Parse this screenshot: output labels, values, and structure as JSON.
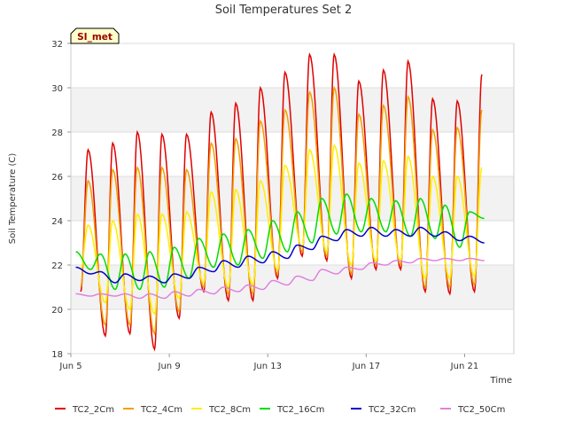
{
  "chart_data": {
    "type": "line",
    "title": "Soil Temperatures Set 2",
    "xlabel": "Time",
    "ylabel": "Soil Temperature (C)",
    "badge": "SI_met",
    "ylim": [
      18,
      32
    ],
    "xlim": [
      0,
      18
    ],
    "x_ticks": [
      {
        "value": 0,
        "label": "Jun 5"
      },
      {
        "value": 4,
        "label": "Jun 9"
      },
      {
        "value": 8,
        "label": "Jun 13"
      },
      {
        "value": 12,
        "label": "Jun 17"
      },
      {
        "value": 16,
        "label": "Jun 21"
      }
    ],
    "y_ticks": [
      18,
      20,
      22,
      24,
      26,
      28,
      30,
      32
    ],
    "grid": "horizontal bands",
    "legend_position": "bottom",
    "x_days": [
      0.2,
      0.5,
      0.8,
      1.2,
      1.5,
      1.8,
      2.2,
      2.5,
      2.8,
      3.2,
      3.5,
      3.8,
      4.2,
      4.5,
      4.8,
      5.2,
      5.5,
      5.8,
      6.2,
      6.5,
      6.8,
      7.2,
      7.5,
      7.8,
      8.2,
      8.5,
      8.8,
      9.2,
      9.5,
      9.8,
      10.2,
      10.5,
      10.8,
      11.2,
      11.5,
      11.8,
      12.2,
      12.5,
      12.8,
      13.2,
      13.5,
      13.8,
      14.2,
      14.5,
      14.8,
      15.2,
      15.5,
      15.8,
      16.2,
      16.5,
      16.8,
      17.2
    ],
    "series": [
      {
        "name": "TC2_2Cm",
        "color": "#e00000",
        "peak_x": [
          0.7,
          1.7,
          2.7,
          3.7,
          4.7,
          5.7,
          6.7,
          7.7,
          8.7,
          9.7,
          10.7,
          11.7,
          12.7,
          13.7,
          14.7,
          15.7,
          16.7
        ],
        "peaks": [
          27.2,
          27.5,
          28.0,
          27.9,
          27.9,
          28.9,
          29.3,
          30.0,
          30.7,
          31.5,
          31.5,
          30.3,
          30.8,
          31.2,
          29.5,
          29.4,
          30.6
        ],
        "trough_x": [
          0.4,
          1.4,
          2.4,
          3.4,
          4.4,
          5.4,
          6.4,
          7.4,
          8.4,
          9.4,
          10.4,
          11.4,
          12.4,
          13.4,
          14.4,
          15.4,
          16.4
        ],
        "troughs": [
          20.8,
          18.8,
          18.9,
          18.2,
          19.6,
          20.8,
          20.4,
          20.4,
          21.4,
          22.4,
          22.2,
          21.4,
          21.8,
          21.8,
          20.8,
          20.7,
          20.8
        ]
      },
      {
        "name": "TC2_4Cm",
        "color": "#f0a000",
        "peak_x": [
          0.7,
          1.7,
          2.7,
          3.7,
          4.7,
          5.7,
          6.7,
          7.7,
          8.7,
          9.7,
          10.7,
          11.7,
          12.7,
          13.7,
          14.7,
          15.7,
          16.7
        ],
        "peaks": [
          25.8,
          26.3,
          26.4,
          26.4,
          26.3,
          27.5,
          27.7,
          28.5,
          29.0,
          29.8,
          30.0,
          28.8,
          29.2,
          29.6,
          28.1,
          28.2,
          29.0
        ],
        "trough_x": [
          0.4,
          1.4,
          2.4,
          3.4,
          4.4,
          5.4,
          6.4,
          7.4,
          8.4,
          9.4,
          10.4,
          11.4,
          12.4,
          13.4,
          14.4,
          15.4,
          16.4
        ],
        "troughs": [
          21.0,
          19.3,
          19.3,
          18.9,
          19.9,
          21.0,
          20.7,
          20.7,
          21.6,
          22.6,
          22.4,
          21.6,
          22.0,
          22.0,
          21.0,
          21.0,
          21.1
        ]
      },
      {
        "name": "TC2_8Cm",
        "color": "#ffee00",
        "peak_x": [
          0.7,
          1.7,
          2.7,
          3.7,
          4.7,
          5.7,
          6.7,
          7.7,
          8.7,
          9.7,
          10.7,
          11.7,
          12.7,
          13.7,
          14.7,
          15.7,
          16.7
        ],
        "peaks": [
          23.8,
          24.0,
          24.3,
          24.3,
          24.4,
          25.3,
          25.4,
          25.8,
          26.5,
          27.2,
          27.4,
          26.6,
          26.7,
          26.9,
          26.0,
          26.0,
          26.4
        ],
        "trough_x": [
          0.4,
          1.4,
          2.4,
          3.4,
          4.4,
          5.4,
          6.4,
          7.4,
          8.4,
          9.4,
          10.4,
          11.4,
          12.4,
          13.4,
          14.4,
          15.4,
          16.4
        ],
        "troughs": [
          21.8,
          20.3,
          20.0,
          19.8,
          20.5,
          21.2,
          21.0,
          21.1,
          21.8,
          22.8,
          22.6,
          22.0,
          22.2,
          22.2,
          21.4,
          21.4,
          21.5
        ]
      },
      {
        "name": "TC2_16Cm",
        "color": "#00dd00",
        "peak_x": [
          0.2,
          1.2,
          2.2,
          3.2,
          4.2,
          5.2,
          6.2,
          7.2,
          8.2,
          9.2,
          10.2,
          11.2,
          12.2,
          13.2,
          14.2,
          15.2,
          16.2
        ],
        "peaks": [
          22.6,
          22.5,
          22.5,
          22.6,
          22.8,
          23.2,
          23.4,
          23.6,
          24.0,
          24.4,
          25.0,
          25.2,
          25.0,
          24.9,
          25.0,
          24.7,
          24.4
        ],
        "trough_x": [
          0.8,
          1.8,
          2.8,
          3.8,
          4.8,
          5.8,
          6.8,
          7.8,
          8.8,
          9.8,
          10.8,
          11.8,
          12.8,
          13.8,
          14.8,
          15.8,
          16.8
        ],
        "troughs": [
          21.8,
          20.9,
          20.9,
          21.0,
          21.4,
          21.9,
          22.0,
          22.3,
          22.6,
          23.0,
          23.4,
          23.5,
          23.5,
          23.3,
          23.2,
          22.8,
          24.1
        ]
      },
      {
        "name": "TC2_32Cm",
        "color": "#0000cc",
        "peak_x": [
          0.2,
          1.2,
          2.2,
          3.2,
          4.2,
          5.2,
          6.2,
          7.2,
          8.2,
          9.2,
          10.2,
          11.2,
          12.2,
          13.2,
          14.2,
          15.2,
          16.2
        ],
        "peaks": [
          21.9,
          21.7,
          21.6,
          21.5,
          21.6,
          21.9,
          22.2,
          22.4,
          22.6,
          22.9,
          23.3,
          23.6,
          23.7,
          23.6,
          23.7,
          23.5,
          23.3
        ],
        "trough_x": [
          0.8,
          1.8,
          2.8,
          3.8,
          4.8,
          5.8,
          6.8,
          7.8,
          8.8,
          9.8,
          10.8,
          11.8,
          12.8,
          13.8,
          14.8,
          15.8,
          16.8
        ],
        "troughs": [
          21.6,
          21.2,
          21.3,
          21.2,
          21.4,
          21.7,
          21.9,
          22.1,
          22.3,
          22.7,
          23.1,
          23.3,
          23.3,
          23.3,
          23.3,
          23.1,
          23.0
        ]
      },
      {
        "name": "TC2_50Cm",
        "color": "#e080e0",
        "peak_x": [
          0.2,
          1.2,
          2.2,
          3.2,
          4.2,
          5.2,
          6.2,
          7.2,
          8.2,
          9.2,
          10.2,
          11.2,
          12.2,
          13.2,
          14.2,
          15.2,
          16.2
        ],
        "peaks": [
          20.7,
          20.7,
          20.7,
          20.7,
          20.8,
          20.9,
          21.0,
          21.1,
          21.3,
          21.5,
          21.8,
          21.9,
          22.1,
          22.2,
          22.3,
          22.3,
          22.3
        ],
        "trough_x": [
          0.8,
          1.8,
          2.8,
          3.8,
          4.8,
          5.8,
          6.8,
          7.8,
          8.8,
          9.8,
          10.8,
          11.8,
          12.8,
          13.8,
          14.8,
          15.8,
          16.8
        ],
        "troughs": [
          20.6,
          20.6,
          20.5,
          20.5,
          20.6,
          20.7,
          20.8,
          20.9,
          21.1,
          21.3,
          21.6,
          21.8,
          22.0,
          22.1,
          22.2,
          22.2,
          22.2
        ]
      }
    ]
  }
}
